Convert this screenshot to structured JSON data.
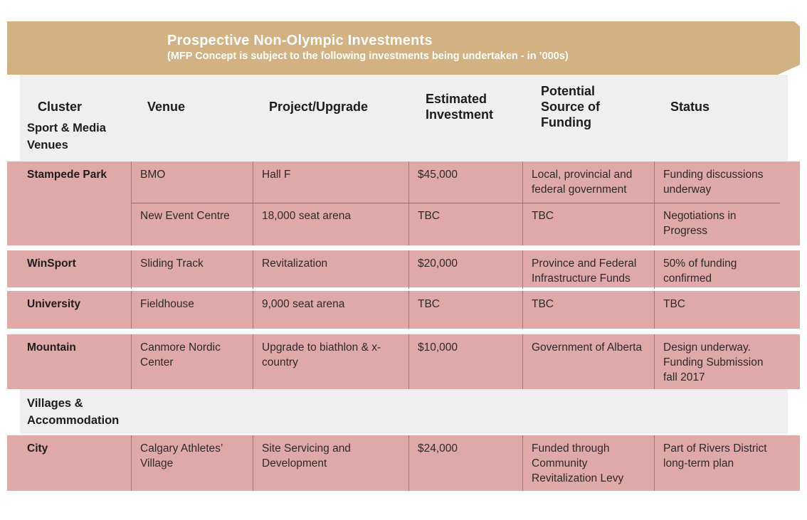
{
  "banner": {
    "title": "Prospective Non-Olympic Investments",
    "subtitle": "(MFP Concept is subject to the following investments being undertaken - in ’000s)"
  },
  "colors": {
    "banner_bg": "#d2b183",
    "row_bg": "#dfa9a7",
    "band_bg": "#efefef",
    "divider": "#ab7472",
    "banner_text": "#ffffff",
    "body_text": "#2e2a2b"
  },
  "table": {
    "columns": [
      "Cluster",
      "Venue",
      "Project/Upgrade",
      "Estimated Investment",
      "Potential Source of Funding",
      "Status"
    ],
    "sections": [
      {
        "label": "Sport & Media Venues",
        "rows": [
          {
            "cluster": "Stampede Park",
            "subrows": [
              {
                "venue": "BMO",
                "project": "Hall F",
                "investment": "$45,000",
                "funding": "Local, provincial and federal government",
                "status": "Funding discussions underway"
              },
              {
                "venue": "New Event Centre",
                "project": "18,000 seat arena",
                "investment": "TBC",
                "funding": "TBC",
                "status": "Negotiations in Progress"
              }
            ]
          },
          {
            "cluster": "WinSport",
            "subrows": [
              {
                "venue": "Sliding Track",
                "project": "Revitalization",
                "investment": "$20,000",
                "funding": "Province and Federal Infrastructure Funds",
                "status": "50% of funding confirmed"
              }
            ]
          },
          {
            "cluster": "University",
            "subrows": [
              {
                "venue": "Fieldhouse",
                "project": "9,000 seat arena",
                "investment": "TBC",
                "funding": "TBC",
                "status": "TBC"
              }
            ]
          },
          {
            "cluster": "Mountain",
            "subrows": [
              {
                "venue": "Canmore Nordic Center",
                "project": "Upgrade to biathlon & x- country",
                "investment": "$10,000",
                "funding": "Government of Alberta",
                "status": "Design underway. Funding Submission fall 2017"
              }
            ]
          }
        ]
      },
      {
        "label": "Villages & Accommodation",
        "rows": [
          {
            "cluster": "City",
            "subrows": [
              {
                "venue": "Calgary Athletes’ Village",
                "project": "Site Servicing and Development",
                "investment": "$24,000",
                "funding": "Funded through Community Revitalization Levy",
                "status": "Part of Rivers District long-term plan"
              }
            ]
          }
        ]
      }
    ]
  }
}
